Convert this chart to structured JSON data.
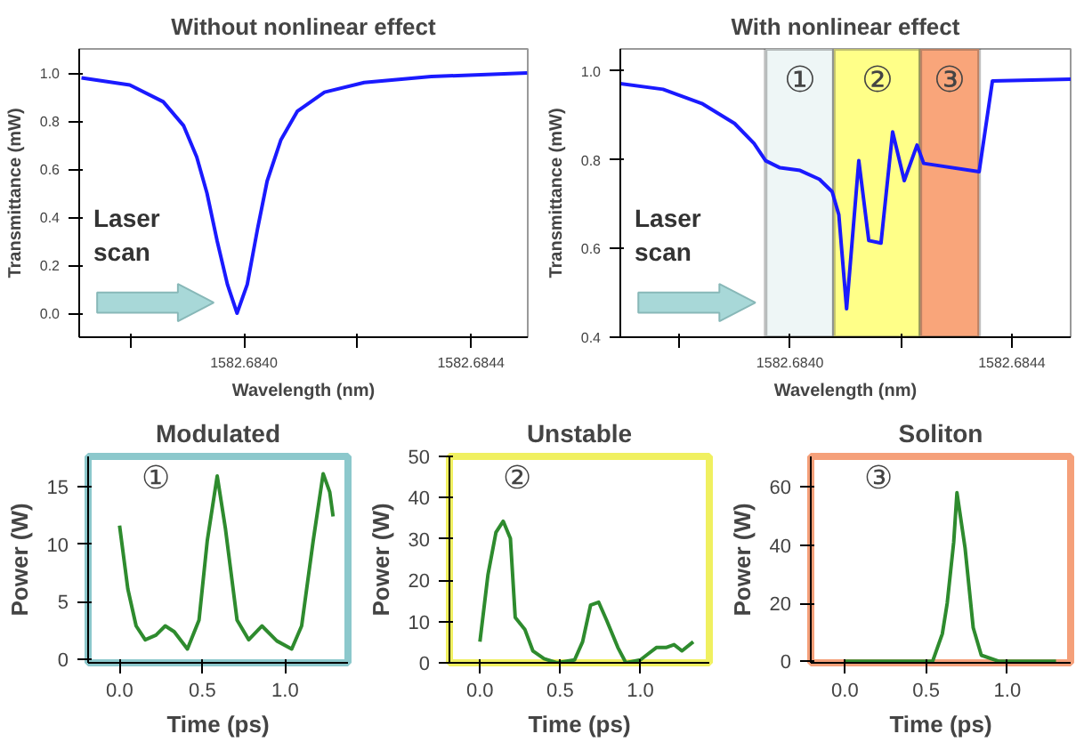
{
  "chart_data": [
    {
      "type": "line",
      "title": "Without nonlinear effect",
      "xlabel": "Wavelength (nm)",
      "ylabel": "Transmittance (mW)",
      "x": [
        1582.683714,
        1582.683799,
        1582.683858,
        1582.683894,
        1582.683917,
        1582.683935,
        1582.683953,
        1582.683971,
        1582.683988,
        1582.684006,
        1582.684024,
        1582.684041,
        1582.684065,
        1582.684094,
        1582.684142,
        1582.684212,
        1582.68433,
        1582.684499
      ],
      "series": [
        {
          "color": "#1a1aff",
          "values": [
            0.98,
            0.95,
            0.88,
            0.78,
            0.65,
            0.5,
            0.3,
            0.12,
            0.0,
            0.12,
            0.35,
            0.55,
            0.72,
            0.84,
            0.92,
            0.96,
            0.985,
            1.0
          ]
        }
      ],
      "xlim": [
        1582.68371,
        1582.6845
      ],
      "xticks": [
        {
          "value": 1582.6838,
          "label": null
        },
        {
          "value": 1582.684,
          "label": "1582.6840"
        },
        {
          "value": 1582.6842,
          "label": null
        },
        {
          "value": 1582.6844,
          "label": "1582.6844"
        }
      ],
      "ylim": [
        -0.1,
        1.1
      ],
      "yticks": [
        {
          "value": 0,
          "label": "0.0"
        },
        {
          "value": 0.2,
          "label": "0.2"
        },
        {
          "value": 0.4,
          "label": "0.4"
        },
        {
          "value": 0.6,
          "label": "0.6"
        },
        {
          "value": 0.8,
          "label": "0.8"
        },
        {
          "value": 1.0,
          "label": "1.0"
        }
      ],
      "annotations": [
        "Laser\nscan"
      ]
    },
    {
      "type": "line",
      "title": "With nonlinear effect",
      "xlabel": "Wavelength (nm)",
      "ylabel": "Transmittance (mW)",
      "x": [
        1582.683694,
        1582.683771,
        1582.683841,
        1582.6839,
        1582.683935,
        1582.683956,
        1582.683982,
        1582.684018,
        1582.684053,
        1582.684076,
        1582.684088,
        1582.684102,
        1582.684124,
        1582.684142,
        1582.684164,
        1582.684185,
        1582.684206,
        1582.684229,
        1582.684241,
        1582.684341,
        1582.684365,
        1582.684506
      ],
      "series": [
        {
          "color": "#1a1aff",
          "values": [
            0.972,
            0.959,
            0.927,
            0.882,
            0.837,
            0.798,
            0.782,
            0.776,
            0.756,
            0.728,
            0.676,
            0.464,
            0.798,
            0.618,
            0.612,
            0.863,
            0.753,
            0.833,
            0.792,
            0.773,
            0.978,
            0.982
          ]
        }
      ],
      "bands": [
        {
          "axis": "x",
          "from": 1582.683956,
          "to": 1582.684079,
          "label": "①",
          "color": "#eef6f6"
        },
        {
          "axis": "x",
          "from": 1582.684079,
          "to": 1582.684235,
          "label": "②",
          "color": "#ffff88"
        },
        {
          "axis": "x",
          "from": 1582.684235,
          "to": 1582.684341,
          "label": "③",
          "color": "#f9a57a"
        }
      ],
      "xlim": [
        1582.683694,
        1582.684506
      ],
      "xticks": [
        {
          "value": 1582.6838,
          "label": null
        },
        {
          "value": 1582.684,
          "label": "1582.6840"
        },
        {
          "value": 1582.6842,
          "label": null
        },
        {
          "value": 1582.6844,
          "label": "1582.6844"
        }
      ],
      "ylim": [
        0.4,
        1.05
      ],
      "yticks": [
        {
          "value": 0.4,
          "label": "0.4"
        },
        {
          "value": 0.6,
          "label": "0.6"
        },
        {
          "value": 0.8,
          "label": "0.8"
        },
        {
          "value": 1.0,
          "label": "1.0"
        }
      ],
      "annotations": [
        "Laser\nscan"
      ]
    },
    {
      "type": "line",
      "title": "Modulated",
      "xlabel": "Time (ps)",
      "ylabel": "Power (W)",
      "x": [
        0,
        0.05,
        0.1,
        0.155,
        0.22,
        0.276,
        0.33,
        0.41,
        0.48,
        0.53,
        0.59,
        0.64,
        0.71,
        0.78,
        0.86,
        0.95,
        1.04,
        1.1,
        1.17,
        1.23,
        1.27,
        1.29
      ],
      "series": [
        {
          "color": "#2e8b2e",
          "values": [
            11.6,
            6.1,
            2.9,
            1.7,
            2.1,
            2.9,
            2.4,
            0.9,
            3.4,
            10.3,
            15.9,
            11.3,
            3.4,
            1.7,
            2.9,
            1.6,
            0.9,
            2.9,
            10.3,
            16.1,
            14.5,
            12.4
          ]
        }
      ],
      "xlim": [
        -0.19,
        1.38
      ],
      "xticks": [
        {
          "value": 0,
          "label": "0.0"
        },
        {
          "value": 0.5,
          "label": "0.5"
        },
        {
          "value": 1.0,
          "label": "1.0"
        }
      ],
      "ylim": [
        -0.3,
        17.6
      ],
      "yticks": [
        0,
        5,
        10,
        15
      ],
      "annotations": [
        "①"
      ]
    },
    {
      "type": "line",
      "title": "Unstable",
      "xlabel": "Time (ps)",
      "ylabel": "Power (W)",
      "x": [
        0,
        0.05,
        0.1,
        0.145,
        0.19,
        0.22,
        0.28,
        0.33,
        0.4,
        0.48,
        0.59,
        0.64,
        0.69,
        0.74,
        0.79,
        0.86,
        0.91,
        1.0,
        1.05,
        1.1,
        1.16,
        1.21,
        1.26,
        1.33
      ],
      "series": [
        {
          "color": "#2e8b2e",
          "values": [
            5.1,
            21.3,
            31.6,
            34.3,
            30.1,
            11.0,
            8.1,
            2.9,
            1.0,
            0,
            0.7,
            5.1,
            14.0,
            14.7,
            10.3,
            3.7,
            0,
            0.7,
            2.2,
            3.7,
            3.7,
            4.4,
            2.9,
            5.1
          ]
        }
      ],
      "xlim": [
        -0.19,
        1.43
      ],
      "xticks": [
        {
          "value": 0,
          "label": "0.0"
        },
        {
          "value": 0.5,
          "label": "0.5"
        },
        {
          "value": 1.0,
          "label": "1.0"
        }
      ],
      "ylim": [
        0,
        50
      ],
      "yticks": [
        0,
        10,
        20,
        30,
        40,
        50
      ],
      "annotations": [
        "②"
      ]
    },
    {
      "type": "line",
      "title": "Soliton",
      "xlabel": "Time (ps)",
      "ylabel": "Power (W)",
      "x": [
        0,
        0.54,
        0.6,
        0.63,
        0.67,
        0.69,
        0.74,
        0.79,
        0.84,
        0.95,
        1.3
      ],
      "series": [
        {
          "color": "#2e8b2e",
          "values": [
            0,
            0,
            9.5,
            20,
            41,
            58,
            39,
            11.6,
            2.1,
            0,
            0
          ]
        }
      ],
      "xlim": [
        -0.21,
        1.39
      ],
      "xticks": [
        {
          "value": 0,
          "label": "0.0"
        },
        {
          "value": 0.5,
          "label": "0.5"
        },
        {
          "value": 1.0,
          "label": "1.0"
        }
      ],
      "ylim": [
        -0.5,
        70.5
      ],
      "yticks": [
        0,
        20,
        40,
        60
      ],
      "annotations": [
        "③"
      ]
    }
  ]
}
